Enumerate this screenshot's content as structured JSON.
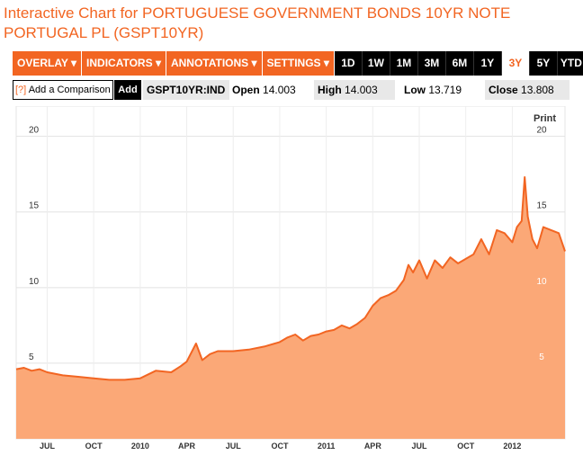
{
  "title": "Interactive Chart for PORTUGUESE GOVERNMENT BONDS 10YR NOTE PORTUGAL PL (GSPT10YR)",
  "toolbar": {
    "menus": [
      "OVERLAY ▾",
      "INDICATORS ▾",
      "ANNOTATIONS ▾",
      "SETTINGS ▾"
    ],
    "ranges": [
      "1D",
      "1W",
      "1M",
      "3M",
      "6M",
      "1Y",
      "3Y",
      "5Y",
      "YTD"
    ],
    "active_range": "3Y"
  },
  "info": {
    "compare_q": "[?]",
    "compare_label": "Add a Comparison",
    "add_label": "Add",
    "symbol": "GSPT10YR:IND",
    "open_label": "Open",
    "open_value": "14.003",
    "high_label": "High",
    "high_value": "14.003",
    "low_label": "Low",
    "low_value": "13.719",
    "close_label": "Close",
    "close_value": "13.808"
  },
  "print_label": "Print",
  "colors": {
    "accent": "#f26522",
    "fill": "#fba877",
    "line": "#f26522"
  },
  "chart_data": {
    "type": "area",
    "ylim": [
      0,
      22
    ],
    "y_ticks": [
      "5",
      "10",
      "15",
      "20"
    ],
    "x_ticks": [
      "JUL",
      "OCT",
      "2010",
      "APR",
      "JUL",
      "OCT",
      "2011",
      "APR",
      "JUL",
      "OCT",
      "2012"
    ],
    "x_tick_months": [
      2.0,
      5.0,
      8.0,
      11.0,
      14.0,
      17.0,
      20.0,
      23.0,
      26.0,
      29.0,
      32.0
    ],
    "x_range_months": [
      0,
      35.4
    ],
    "grid": true,
    "series": [
      {
        "x": [
          0,
          0.5,
          1.0,
          1.5,
          2.0,
          3.0,
          4.0,
          5.0,
          6.0,
          7.0,
          8.0,
          9.0,
          10.0,
          10.6,
          11.0,
          11.6,
          12.0,
          12.5,
          13.0,
          14.0,
          15.0,
          16.0,
          17.0,
          17.5,
          18.0,
          18.5,
          19.0,
          19.5,
          20.0,
          20.5,
          21.0,
          21.5,
          22.0,
          22.5,
          23.0,
          23.5,
          24.0,
          24.5,
          25.0,
          25.3,
          25.6,
          26.0,
          26.5,
          27.0,
          27.5,
          28.0,
          28.5,
          29.0,
          29.5,
          30.0,
          30.5,
          31.0,
          31.5,
          32.0,
          32.3,
          32.6,
          32.8,
          33.0,
          33.3,
          33.6,
          34.0,
          34.5,
          35.0,
          35.4
        ],
        "y": [
          4.6,
          4.7,
          4.5,
          4.6,
          4.4,
          4.2,
          4.1,
          4.0,
          3.9,
          3.9,
          4.0,
          4.5,
          4.4,
          4.8,
          5.1,
          6.3,
          5.2,
          5.6,
          5.8,
          5.8,
          5.9,
          6.1,
          6.4,
          6.7,
          6.9,
          6.5,
          6.8,
          6.9,
          7.1,
          7.2,
          7.5,
          7.3,
          7.6,
          8.0,
          8.8,
          9.3,
          9.5,
          9.8,
          10.5,
          11.5,
          11.0,
          11.8,
          10.6,
          11.8,
          11.3,
          12.0,
          11.6,
          11.9,
          12.2,
          13.2,
          12.2,
          13.8,
          13.6,
          13.0,
          14.0,
          14.4,
          17.3,
          14.7,
          13.2,
          12.6,
          14.0,
          13.8,
          13.6,
          12.4
        ]
      }
    ]
  }
}
